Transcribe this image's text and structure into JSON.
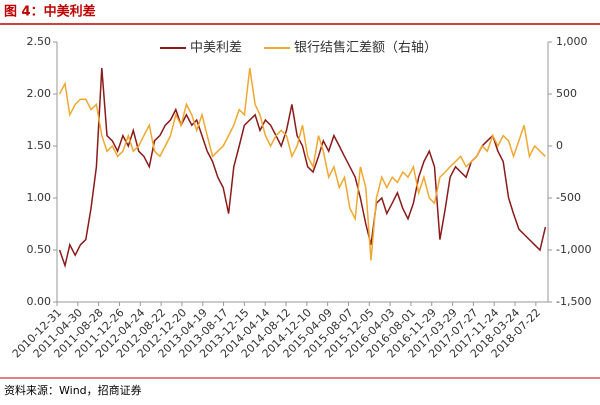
{
  "chart_data": {
    "type": "line",
    "title": "图 4：中美利差",
    "source": "资料来源：Wind，招商证券",
    "x": [
      "2011-01-15",
      "2011-02-15",
      "2011-03-15",
      "2011-04-15",
      "2011-05-15",
      "2011-06-15",
      "2011-07-15",
      "2011-08-15",
      "2011-09-15",
      "2011-10-15",
      "2011-11-15",
      "2011-12-15",
      "2012-01-15",
      "2012-02-15",
      "2012-03-15",
      "2012-04-15",
      "2012-05-15",
      "2012-06-15",
      "2012-07-15",
      "2012-08-15",
      "2012-09-15",
      "2012-10-15",
      "2012-11-15",
      "2012-12-15",
      "2013-01-15",
      "2013-02-15",
      "2013-03-15",
      "2013-04-15",
      "2013-05-15",
      "2013-06-15",
      "2013-07-15",
      "2013-08-15",
      "2013-09-15",
      "2013-10-15",
      "2013-11-15",
      "2013-12-15",
      "2014-01-15",
      "2014-02-15",
      "2014-03-15",
      "2014-04-15",
      "2014-05-15",
      "2014-06-15",
      "2014-07-15",
      "2014-08-15",
      "2014-09-15",
      "2014-10-15",
      "2014-11-15",
      "2014-12-15",
      "2015-01-15",
      "2015-02-15",
      "2015-03-15",
      "2015-04-15",
      "2015-05-15",
      "2015-06-15",
      "2015-07-15",
      "2015-08-15",
      "2015-09-15",
      "2015-10-15",
      "2015-11-15",
      "2015-12-15",
      "2016-01-15",
      "2016-02-15",
      "2016-03-15",
      "2016-04-15",
      "2016-05-15",
      "2016-06-15",
      "2016-07-15",
      "2016-08-15",
      "2016-09-15",
      "2016-10-15",
      "2016-11-15",
      "2016-12-15",
      "2017-01-15",
      "2017-02-15",
      "2017-03-15",
      "2017-04-15",
      "2017-05-15",
      "2017-06-15",
      "2017-07-15",
      "2017-08-15",
      "2017-09-15",
      "2017-10-15",
      "2017-11-15",
      "2017-12-15",
      "2018-01-15",
      "2018-02-15",
      "2018-03-15",
      "2018-04-15",
      "2018-05-15",
      "2018-06-15",
      "2018-07-15",
      "2018-08-15",
      "2018-09-15"
    ],
    "series": [
      {
        "name": "中美利差",
        "color": "#8b1a1a",
        "values": [
          0.5,
          0.35,
          0.55,
          0.45,
          0.55,
          0.6,
          0.9,
          1.3,
          2.25,
          1.6,
          1.55,
          1.45,
          1.6,
          1.5,
          1.65,
          1.45,
          1.4,
          1.3,
          1.55,
          1.6,
          1.7,
          1.75,
          1.85,
          1.7,
          1.8,
          1.7,
          1.75,
          1.6,
          1.45,
          1.35,
          1.2,
          1.1,
          0.85,
          1.3,
          1.5,
          1.7,
          1.75,
          1.8,
          1.65,
          1.75,
          1.7,
          1.6,
          1.5,
          1.65,
          1.9,
          1.6,
          1.5,
          1.3,
          1.25,
          1.4,
          1.55,
          1.45,
          1.6,
          1.5,
          1.4,
          1.3,
          1.2,
          1.0,
          0.75,
          0.55,
          0.95,
          1.0,
          0.85,
          0.95,
          1.05,
          0.9,
          0.8,
          0.95,
          1.2,
          1.35,
          1.45,
          1.3,
          0.6,
          0.9,
          1.2,
          1.3,
          1.25,
          1.2,
          1.35,
          1.4,
          1.5,
          1.55,
          1.6,
          1.45,
          1.35,
          1.0,
          0.85,
          0.7,
          0.65,
          0.6,
          0.55,
          0.5,
          0.72
        ]
      },
      {
        "name": "银行结售汇差额（右轴）",
        "color": "#f0a830",
        "axis": "y2",
        "values": [
          500,
          600,
          300,
          400,
          450,
          450,
          350,
          400,
          100,
          -50,
          0,
          -100,
          -50,
          100,
          -50,
          0,
          100,
          200,
          -50,
          -100,
          0,
          100,
          300,
          200,
          400,
          300,
          150,
          300,
          100,
          -100,
          -50,
          0,
          100,
          200,
          350,
          300,
          750,
          400,
          300,
          100,
          0,
          100,
          150,
          100,
          -100,
          0,
          200,
          -100,
          -200,
          100,
          -50,
          -300,
          -200,
          -400,
          -300,
          -600,
          -700,
          -200,
          -400,
          -1100,
          -500,
          -300,
          -400,
          -300,
          -350,
          -250,
          -300,
          -200,
          -450,
          -300,
          -500,
          -550,
          -300,
          -250,
          -200,
          -150,
          -100,
          -200,
          -150,
          -100,
          0,
          -50,
          100,
          0,
          100,
          50,
          -100,
          50,
          200,
          -100,
          0,
          -50,
          -100
        ]
      }
    ],
    "xlim": [
      "2010-12-31",
      "2018-09-30"
    ],
    "xticks": [
      "2010-12-31",
      "2011-04-30",
      "2011-08-28",
      "2011-12-26",
      "2012-04-24",
      "2012-08-22",
      "2012-12-20",
      "2013-04-19",
      "2013-08-17",
      "2013-12-15",
      "2014-04-14",
      "2014-08-12",
      "2014-12-10",
      "2015-04-09",
      "2015-08-07",
      "2015-12-05",
      "2016-04-03",
      "2016-08-01",
      "2016-11-29",
      "2017-03-29",
      "2017-07-27",
      "2017-11-24",
      "2018-03-24",
      "2018-07-22"
    ],
    "ylim": [
      0,
      2.5
    ],
    "yticks": [
      {
        "value": 0,
        "label": "0.00"
      },
      {
        "value": 0.5,
        "label": "0.50"
      },
      {
        "value": 1,
        "label": "1.00"
      },
      {
        "value": 1.5,
        "label": "1.50"
      },
      {
        "value": 2,
        "label": "2.00"
      },
      {
        "value": 2.5,
        "label": "2.50"
      }
    ],
    "y2lim": [
      -1500,
      1000
    ],
    "y2ticks": [
      {
        "value": -1500,
        "label": "-1,500"
      },
      {
        "value": -1000,
        "label": "-1,000"
      },
      {
        "value": -500,
        "label": "-500"
      },
      0,
      500,
      {
        "value": 1000,
        "label": "1,000"
      }
    ],
    "legend": "top"
  }
}
